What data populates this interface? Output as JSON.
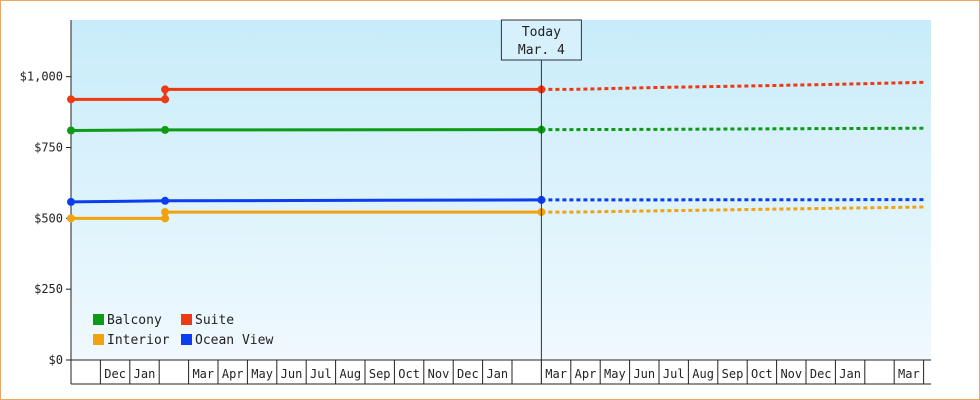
{
  "chart_data": {
    "type": "line",
    "ylim": [
      0,
      1200
    ],
    "yticks": [
      {
        "value": 0,
        "label": "$0"
      },
      {
        "value": 250,
        "label": "$250"
      },
      {
        "value": 500,
        "label": "$500"
      },
      {
        "value": 750,
        "label": "$750"
      },
      {
        "value": 1000,
        "label": "$1,000"
      }
    ],
    "x_months": [
      "",
      "Dec",
      "Jan",
      "",
      "Mar",
      "Apr",
      "May",
      "Jun",
      "Jul",
      "Aug",
      "Sep",
      "Oct",
      "Nov",
      "Dec",
      "Jan",
      "",
      "Mar",
      "Apr",
      "May",
      "Jun",
      "Jul",
      "Aug",
      "Sep",
      "Oct",
      "Nov",
      "Dec",
      "Jan",
      "",
      "Mar"
    ],
    "today_index": 16,
    "today_label_line1": "Today",
    "today_label_line2": "Mar. 4",
    "series": [
      {
        "name": "Suite",
        "color": "#ee3a12",
        "actual": [
          [
            0,
            920
          ],
          [
            3.2,
            920
          ],
          [
            3.2,
            955
          ],
          [
            16,
            955
          ]
        ],
        "actual_points": [
          [
            0,
            920
          ],
          [
            3.2,
            920
          ],
          [
            3.2,
            955
          ],
          [
            16,
            955
          ]
        ],
        "forecast": [
          [
            16,
            955
          ],
          [
            17,
            955
          ],
          [
            20,
            962
          ],
          [
            23,
            967
          ],
          [
            26,
            973
          ],
          [
            29,
            980
          ]
        ]
      },
      {
        "name": "Balcony",
        "color": "#0e9a16",
        "actual": [
          [
            0,
            810
          ],
          [
            3.2,
            812
          ],
          [
            16,
            813
          ]
        ],
        "actual_points": [
          [
            0,
            810
          ],
          [
            3.2,
            812
          ],
          [
            16,
            813
          ]
        ],
        "forecast": [
          [
            16,
            813
          ],
          [
            20,
            814
          ],
          [
            24,
            816
          ],
          [
            29,
            818
          ]
        ]
      },
      {
        "name": "Ocean View",
        "color": "#0b3ef0",
        "actual": [
          [
            0,
            558
          ],
          [
            3.2,
            562
          ],
          [
            16,
            565
          ]
        ],
        "actual_points": [
          [
            0,
            558
          ],
          [
            3.2,
            562
          ],
          [
            16,
            565
          ]
        ],
        "forecast": [
          [
            16,
            565
          ],
          [
            29,
            566
          ]
        ]
      },
      {
        "name": "Interior",
        "color": "#f2a20c",
        "actual": [
          [
            0,
            500
          ],
          [
            3.2,
            500
          ],
          [
            3.2,
            522
          ],
          [
            16,
            522
          ]
        ],
        "actual_points": [
          [
            0,
            500
          ],
          [
            3.2,
            500
          ],
          [
            3.2,
            522
          ],
          [
            16,
            522
          ]
        ],
        "forecast": [
          [
            16,
            522
          ],
          [
            17,
            522
          ],
          [
            21,
            528
          ],
          [
            25,
            534
          ],
          [
            29,
            540
          ]
        ]
      }
    ],
    "legend": [
      {
        "label": "Balcony",
        "color": "#0e9a16"
      },
      {
        "label": "Suite",
        "color": "#ee3a12"
      },
      {
        "label": "Interior",
        "color": "#f2a20c"
      },
      {
        "label": "Ocean View",
        "color": "#0b3ef0"
      }
    ],
    "legend_placement": "bottom-left",
    "grid": false
  }
}
